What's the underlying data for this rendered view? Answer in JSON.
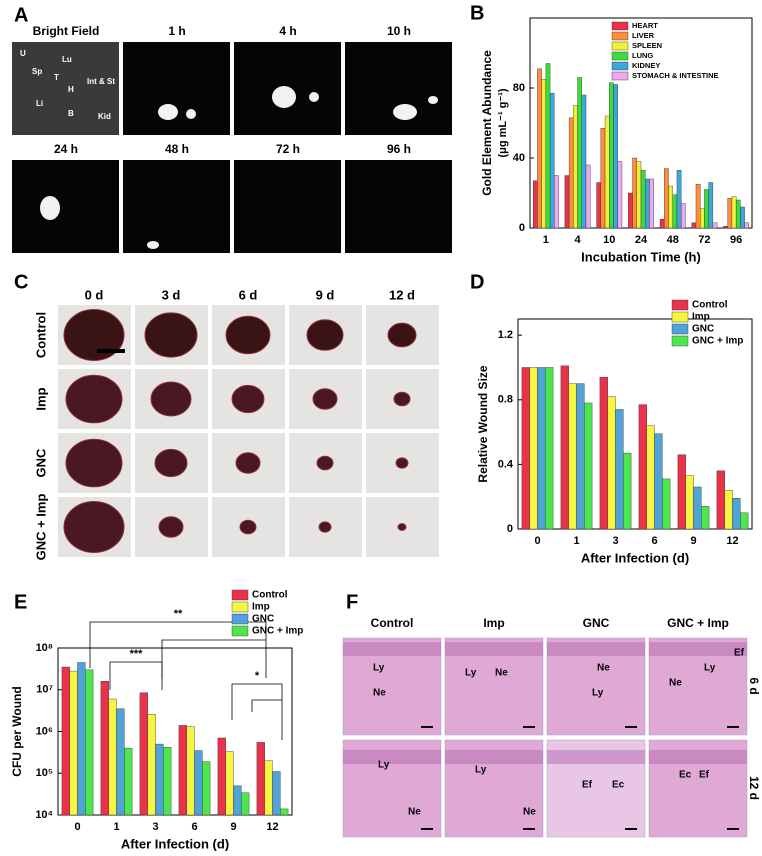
{
  "panel_letters": [
    "A",
    "B",
    "C",
    "D",
    "E",
    "F"
  ],
  "panel_a": {
    "columns": [
      "Bright Field",
      "1 h",
      "4 h",
      "10 h",
      "24 h",
      "48 h",
      "72 h",
      "96 h"
    ],
    "organ_labels": [
      "U",
      "Lu",
      "Sp",
      "T",
      "H",
      "Int & St",
      "Li",
      "B",
      "Kid"
    ]
  },
  "panel_c": {
    "columns": [
      "0 d",
      "3 d",
      "6 d",
      "9 d",
      "12 d"
    ],
    "rows": [
      "Control",
      "Imp",
      "GNC",
      "GNC + Imp"
    ]
  },
  "panel_f": {
    "columns": [
      "Control",
      "Imp",
      "GNC",
      "GNC + Imp"
    ],
    "rows": [
      "6 d",
      "12 d"
    ],
    "annotations": [
      [
        [
          "Ly",
          "Ne"
        ],
        [
          "Ly",
          "Ne"
        ],
        [
          "Ne",
          "Ly"
        ],
        [
          "Ef",
          "Ly",
          "Ne"
        ]
      ],
      [
        [
          "Ly",
          "Ne"
        ],
        [
          "Ly",
          "Ne"
        ],
        [
          "Ef",
          "Ec"
        ],
        [
          "Ec",
          "Ef"
        ]
      ]
    ]
  },
  "chart_data": [
    {
      "type": "bar",
      "y_label": "Gold Element Abundance",
      "y_unit": "(μg mL⁻¹ g⁻¹)",
      "x_label": "Incubation Time (h)",
      "categories": [
        "1",
        "4",
        "10",
        "24",
        "48",
        "72",
        "96"
      ],
      "series": [
        {
          "name": "HEART",
          "color": "#e8334a",
          "values": [
            27,
            30,
            26,
            20,
            5,
            3,
            1
          ]
        },
        {
          "name": "LIVER",
          "color": "#ff8c3a",
          "values": [
            91,
            63,
            57,
            40,
            34,
            25,
            17
          ]
        },
        {
          "name": "SPLEEN",
          "color": "#f0f03c",
          "values": [
            85,
            70,
            64,
            38,
            24,
            11,
            18
          ]
        },
        {
          "name": "LUNG",
          "color": "#3ddc3d",
          "values": [
            94,
            86,
            83,
            33,
            19,
            22,
            16
          ]
        },
        {
          "name": "KIDNEY",
          "color": "#3aa8d8",
          "values": [
            77,
            76,
            82,
            28,
            33,
            26,
            12
          ]
        },
        {
          "name": "STOMACH & INTESTINE",
          "color": "#f0a8f0",
          "values": [
            30,
            36,
            38,
            28,
            14,
            3,
            3
          ]
        }
      ],
      "ylim": [
        0,
        120
      ],
      "yticks": [
        0,
        40,
        80
      ],
      "legend": "top-right"
    },
    {
      "type": "bar",
      "y_label": "Relative Wound Size",
      "x_label": "After Infection (d)",
      "categories": [
        "0",
        "1",
        "3",
        "6",
        "9",
        "12"
      ],
      "series": [
        {
          "name": "Control",
          "color": "#e8334a",
          "values": [
            1,
            1.01,
            0.94,
            0.77,
            0.46,
            0.36
          ]
        },
        {
          "name": "Imp",
          "color": "#f5f542",
          "values": [
            1,
            0.9,
            0.82,
            0.64,
            0.33,
            0.24
          ]
        },
        {
          "name": "GNC",
          "color": "#4fa3d8",
          "values": [
            1,
            0.9,
            0.74,
            0.59,
            0.26,
            0.19
          ]
        },
        {
          "name": "GNC + Imp",
          "color": "#4ee64e",
          "values": [
            1,
            0.78,
            0.47,
            0.31,
            0.14,
            0.1
          ]
        }
      ],
      "ylim": [
        0,
        1.3
      ],
      "yticks": [
        0,
        0.4,
        0.8,
        1.2
      ],
      "legend": "top-right"
    },
    {
      "type": "bar",
      "y_label": "CFU per Wound",
      "x_label": "After Infection (d)",
      "categories": [
        "0",
        "1",
        "3",
        "6",
        "9",
        "12"
      ],
      "series": [
        {
          "name": "Control",
          "color": "#e8334a",
          "values": [
            35000000,
            16000000,
            8500000,
            1400000,
            700000,
            550000
          ]
        },
        {
          "name": "Imp",
          "color": "#f5f542",
          "values": [
            28000000,
            6000000,
            2600000,
            1300000,
            330000,
            200000
          ]
        },
        {
          "name": "GNC",
          "color": "#4fa3d8",
          "values": [
            45000000,
            3500000,
            500000,
            350000,
            50000,
            110000
          ]
        },
        {
          "name": "GNC + Imp",
          "color": "#4ee64e",
          "values": [
            30000000,
            400000,
            420000,
            190000,
            34000,
            14000
          ]
        }
      ],
      "log_scale": true,
      "ylim": [
        10000,
        100000000
      ],
      "yticks": [
        {
          "value": 10000,
          "label": "10⁴"
        },
        {
          "value": 100000,
          "label": "10⁵"
        },
        {
          "value": 1000000,
          "label": "10⁶"
        },
        {
          "value": 10000000,
          "label": "10⁷"
        },
        {
          "value": 100000000,
          "label": "10⁸"
        }
      ],
      "annotations": [
        "**",
        "***",
        "*"
      ],
      "legend": "top-right"
    }
  ]
}
